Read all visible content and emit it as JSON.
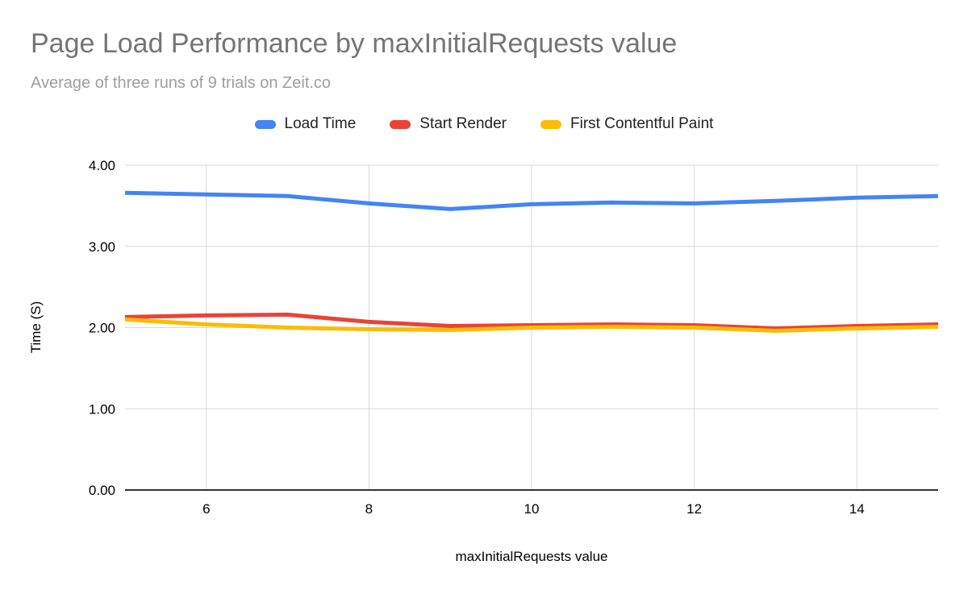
{
  "header": {
    "title": "Page Load Performance by maxInitialRequests value",
    "subtitle": "Average of three runs of 9 trials on Zeit.co"
  },
  "colors": {
    "background": "#ffffff",
    "title_text": "#757575",
    "subtitle_text": "#9e9e9e",
    "axis_text": "#000000",
    "gridline": "#d9d9d9",
    "axis_line": "#333333",
    "series_blue": "#4285f4",
    "series_red": "#ea4335",
    "series_yellow": "#fbbc04"
  },
  "chart_data": {
    "type": "line",
    "title": "Page Load Performance by maxInitialRequests value",
    "subtitle": "Average of three runs of 9 trials on Zeit.co",
    "xlabel": "maxInitialRequests value",
    "ylabel": "Time (S)",
    "x": [
      5,
      6,
      7,
      8,
      9,
      10,
      11,
      12,
      13,
      14,
      15
    ],
    "xlim": [
      5,
      15
    ],
    "ylim": [
      0,
      4
    ],
    "x_ticks": [
      6,
      8,
      10,
      12,
      14
    ],
    "x_tick_labels": [
      "6",
      "8",
      "10",
      "12",
      "14"
    ],
    "y_ticks": [
      0,
      1,
      2,
      3,
      4
    ],
    "y_tick_labels": [
      "0.00",
      "1.00",
      "2.00",
      "3.00",
      "4.00"
    ],
    "grid": true,
    "legend_position": "top",
    "series": [
      {
        "name": "Load Time",
        "color": "#4285f4",
        "values": [
          3.66,
          3.64,
          3.62,
          3.53,
          3.46,
          3.52,
          3.54,
          3.53,
          3.56,
          3.6,
          3.62
        ]
      },
      {
        "name": "Start Render",
        "color": "#ea4335",
        "values": [
          2.13,
          2.15,
          2.16,
          2.07,
          2.02,
          2.03,
          2.04,
          2.03,
          1.99,
          2.02,
          2.04
        ]
      },
      {
        "name": "First Contentful Paint",
        "color": "#fbbc04",
        "values": [
          2.1,
          2.04,
          2.0,
          1.98,
          1.97,
          2.0,
          2.01,
          2.0,
          1.96,
          1.99,
          2.01
        ]
      }
    ]
  }
}
